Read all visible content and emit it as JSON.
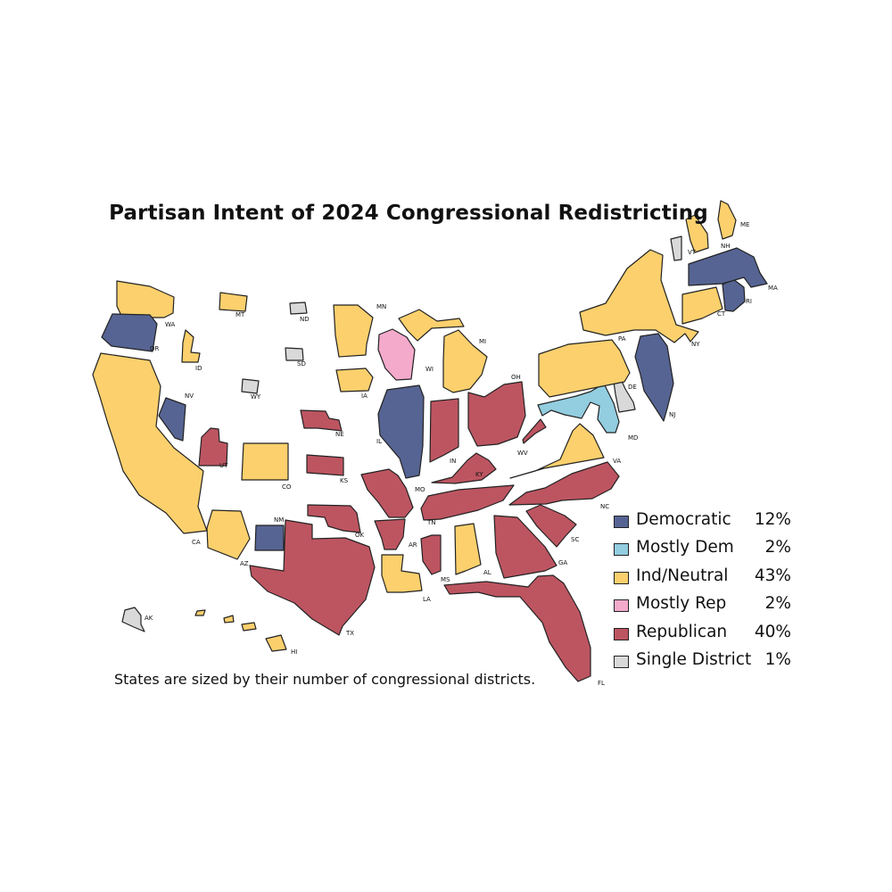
{
  "title": "Partisan Intent of 2024 Congressional Redistricting",
  "footnote": "States are sized by their number of congressional districts.",
  "categories": {
    "dem": {
      "label": "Democratic",
      "percent": "12%",
      "color": "#566493"
    },
    "mdem": {
      "label": "Mostly Dem",
      "percent": "2%",
      "color": "#93cde0"
    },
    "ind": {
      "label": "Ind/Neutral",
      "percent": "43%",
      "color": "#fbd06d"
    },
    "mrep": {
      "label": "Mostly Rep",
      "percent": "2%",
      "color": "#f4aacb"
    },
    "rep": {
      "label": "Republican",
      "percent": "40%",
      "color": "#bd5561"
    },
    "single": {
      "label": "Single District",
      "percent": "1%",
      "color": "#d9d9d9"
    }
  },
  "legend_order": [
    "dem",
    "mdem",
    "ind",
    "mrep",
    "rep",
    "single"
  ],
  "states": [
    {
      "abbr": "WA",
      "cat": "ind"
    },
    {
      "abbr": "OR",
      "cat": "dem"
    },
    {
      "abbr": "CA",
      "cat": "ind"
    },
    {
      "abbr": "NV",
      "cat": "dem"
    },
    {
      "abbr": "ID",
      "cat": "ind"
    },
    {
      "abbr": "MT",
      "cat": "ind"
    },
    {
      "abbr": "WY",
      "cat": "single"
    },
    {
      "abbr": "UT",
      "cat": "rep"
    },
    {
      "abbr": "CO",
      "cat": "ind"
    },
    {
      "abbr": "AZ",
      "cat": "ind"
    },
    {
      "abbr": "NM",
      "cat": "dem"
    },
    {
      "abbr": "ND",
      "cat": "single"
    },
    {
      "abbr": "SD",
      "cat": "single"
    },
    {
      "abbr": "NE",
      "cat": "rep"
    },
    {
      "abbr": "KS",
      "cat": "rep"
    },
    {
      "abbr": "OK",
      "cat": "rep"
    },
    {
      "abbr": "TX",
      "cat": "rep"
    },
    {
      "abbr": "MN",
      "cat": "ind"
    },
    {
      "abbr": "IA",
      "cat": "ind"
    },
    {
      "abbr": "MO",
      "cat": "rep"
    },
    {
      "abbr": "AR",
      "cat": "rep"
    },
    {
      "abbr": "LA",
      "cat": "ind"
    },
    {
      "abbr": "WI",
      "cat": "mrep"
    },
    {
      "abbr": "IL",
      "cat": "dem"
    },
    {
      "abbr": "MI",
      "cat": "ind"
    },
    {
      "abbr": "IN",
      "cat": "rep"
    },
    {
      "abbr": "OH",
      "cat": "rep"
    },
    {
      "abbr": "KY",
      "cat": "rep"
    },
    {
      "abbr": "TN",
      "cat": "rep"
    },
    {
      "abbr": "MS",
      "cat": "rep"
    },
    {
      "abbr": "AL",
      "cat": "ind"
    },
    {
      "abbr": "GA",
      "cat": "rep"
    },
    {
      "abbr": "FL",
      "cat": "rep"
    },
    {
      "abbr": "SC",
      "cat": "rep"
    },
    {
      "abbr": "NC",
      "cat": "rep"
    },
    {
      "abbr": "VA",
      "cat": "ind"
    },
    {
      "abbr": "WV",
      "cat": "rep"
    },
    {
      "abbr": "MD",
      "cat": "mdem"
    },
    {
      "abbr": "DE",
      "cat": "single"
    },
    {
      "abbr": "PA",
      "cat": "ind"
    },
    {
      "abbr": "NJ",
      "cat": "dem"
    },
    {
      "abbr": "NY",
      "cat": "ind"
    },
    {
      "abbr": "CT",
      "cat": "ind"
    },
    {
      "abbr": "RI",
      "cat": "dem"
    },
    {
      "abbr": "MA",
      "cat": "dem"
    },
    {
      "abbr": "VT",
      "cat": "single"
    },
    {
      "abbr": "NH",
      "cat": "ind"
    },
    {
      "abbr": "ME",
      "cat": "ind"
    },
    {
      "abbr": "AK",
      "cat": "single"
    },
    {
      "abbr": "HI",
      "cat": "ind"
    }
  ]
}
